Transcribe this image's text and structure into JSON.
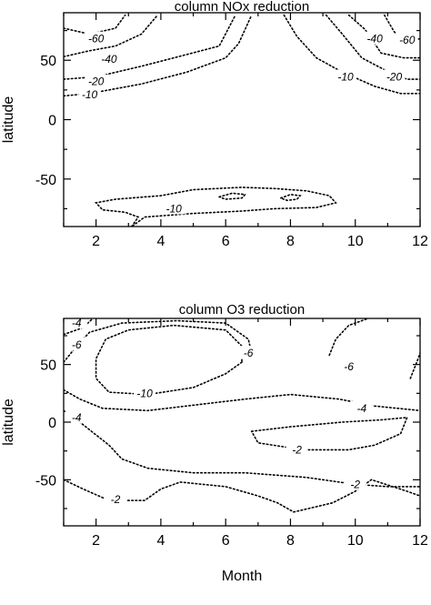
{
  "chart_data": [
    {
      "type": "contour",
      "title": "column NOx reduction",
      "xlabel": "",
      "ylabel": "latitude",
      "xlim": [
        1,
        12
      ],
      "ylim": [
        -90,
        90
      ],
      "xticks": [
        2,
        4,
        6,
        8,
        10,
        12
      ],
      "yticks": [
        50,
        0,
        -50
      ],
      "grid": false,
      "contours": [
        {
          "level": "-60",
          "side": "north-west",
          "points": [
            [
              1,
              77
            ],
            [
              1.8,
              72
            ],
            [
              2.6,
              77
            ],
            [
              2.9,
              88
            ]
          ]
        },
        {
          "level": "-40",
          "side": "north-west",
          "points": [
            [
              1,
              53
            ],
            [
              1.8,
              58
            ],
            [
              2.6,
              62
            ],
            [
              3.4,
              72
            ],
            [
              3.9,
              88
            ]
          ]
        },
        {
          "level": "-20",
          "side": "north-west",
          "points": [
            [
              1,
              34
            ],
            [
              2,
              36
            ],
            [
              3.4,
              45
            ],
            [
              4.4,
              52
            ],
            [
              5.8,
              62
            ],
            [
              6.3,
              88
            ]
          ]
        },
        {
          "level": "-10",
          "side": "north-west",
          "points": [
            [
              1,
              20
            ],
            [
              1.8,
              22
            ],
            [
              3.4,
              30
            ],
            [
              4.8,
              40
            ],
            [
              6,
              52
            ],
            [
              6.4,
              64
            ],
            [
              6.8,
              88
            ]
          ]
        },
        {
          "level": "-60",
          "side": "north-east",
          "points": [
            [
              10.9,
              88
            ],
            [
              11.2,
              74
            ],
            [
              11.5,
              67
            ],
            [
              12,
              68
            ]
          ]
        },
        {
          "level": "-40",
          "side": "north-east",
          "points": [
            [
              9.8,
              88
            ],
            [
              10.3,
              76
            ],
            [
              10.8,
              56
            ],
            [
              11.5,
              52
            ],
            [
              12,
              52
            ]
          ]
        },
        {
          "level": "-20",
          "side": "north-east",
          "points": [
            [
              9.1,
              88
            ],
            [
              9.6,
              72
            ],
            [
              10.2,
              52
            ],
            [
              10.9,
              42
            ],
            [
              11.6,
              34
            ],
            [
              12,
              34
            ]
          ]
        },
        {
          "level": "-10",
          "side": "north-east",
          "points": [
            [
              7.8,
              88
            ],
            [
              8.2,
              70
            ],
            [
              8.8,
              52
            ],
            [
              9.6,
              40
            ],
            [
              10.6,
              28
            ],
            [
              11.4,
              22
            ],
            [
              12,
              22
            ]
          ]
        },
        {
          "level": "-10",
          "side": "south",
          "points": [
            [
              3.1,
              -90
            ],
            [
              3.3,
              -82
            ],
            [
              2.9,
              -78
            ],
            [
              2.2,
              -76
            ],
            [
              2,
              -70
            ],
            [
              2.6,
              -67
            ],
            [
              4,
              -64
            ],
            [
              5,
              -59
            ],
            [
              6.5,
              -57
            ],
            [
              7.5,
              -58
            ],
            [
              8.5,
              -60
            ],
            [
              9.2,
              -64
            ],
            [
              9.4,
              -70
            ],
            [
              8.8,
              -74
            ],
            [
              7.5,
              -75
            ],
            [
              6.5,
              -77
            ],
            [
              5,
              -79
            ],
            [
              3.5,
              -82
            ],
            [
              3.3,
              -86
            ],
            [
              3.1,
              -90
            ]
          ]
        },
        {
          "level": "-10",
          "side": "south-inner-a",
          "points": [
            [
              5.8,
              -65
            ],
            [
              6.2,
              -62
            ],
            [
              6.6,
              -63
            ],
            [
              6.5,
              -66
            ],
            [
              6,
              -67
            ],
            [
              5.8,
              -65
            ]
          ]
        },
        {
          "level": "-10",
          "side": "south-inner-b",
          "points": [
            [
              7.7,
              -66
            ],
            [
              8,
              -63
            ],
            [
              8.3,
              -64
            ],
            [
              8.2,
              -67
            ],
            [
              7.9,
              -68
            ],
            [
              7.7,
              -66
            ]
          ]
        }
      ],
      "labels": [
        {
          "text": "-60",
          "x": 2.0,
          "y": 68
        },
        {
          "text": "-40",
          "x": 2.4,
          "y": 51
        },
        {
          "text": "-20",
          "x": 2.0,
          "y": 32
        },
        {
          "text": "-10",
          "x": 1.8,
          "y": 21
        },
        {
          "text": "-40",
          "x": 10.6,
          "y": 68
        },
        {
          "text": "-60",
          "x": 11.6,
          "y": 67
        },
        {
          "text": "-10",
          "x": 9.7,
          "y": 36
        },
        {
          "text": "-20",
          "x": 11.2,
          "y": 36
        },
        {
          "text": "-10",
          "x": 4.4,
          "y": -75
        }
      ]
    },
    {
      "type": "contour",
      "title": "column O3  reduction",
      "xlabel": "Month",
      "ylabel": "latitude",
      "xlim": [
        1,
        12
      ],
      "ylim": [
        -90,
        90
      ],
      "xticks": [
        2,
        4,
        6,
        8,
        10,
        12
      ],
      "yticks": [
        50,
        0,
        -50
      ],
      "grid": false,
      "contours": [
        {
          "level": "-4",
          "side": "upper-left",
          "points": [
            [
              1,
              76
            ],
            [
              1.6,
              82
            ],
            [
              1.9,
              90
            ]
          ]
        },
        {
          "level": "-6",
          "side": "upper-left",
          "points": [
            [
              1,
              52
            ],
            [
              1.4,
              66
            ],
            [
              1.8,
              78
            ],
            [
              2.8,
              86
            ],
            [
              4.5,
              88
            ],
            [
              6,
              86
            ],
            [
              6.7,
              72
            ],
            [
              6.8,
              60
            ]
          ]
        },
        {
          "level": "-10",
          "side": "upper-left",
          "points": [
            [
              6.5,
              52
            ],
            [
              6,
              42
            ],
            [
              5,
              30
            ],
            [
              3.6,
              24
            ],
            [
              2.4,
              26
            ],
            [
              2,
              38
            ],
            [
              2,
              55
            ],
            [
              2.3,
              72
            ],
            [
              3,
              80
            ],
            [
              4.4,
              84
            ],
            [
              6,
              80
            ],
            [
              6.5,
              66
            ],
            [
              6.5,
              52
            ]
          ]
        },
        {
          "level": "-4",
          "side": "upper-left",
          "points": [
            [
              1,
              28
            ],
            [
              1.5,
              20
            ],
            [
              2.2,
              12
            ],
            [
              3.6,
              10
            ],
            [
              5.4,
              16
            ],
            [
              6.6,
              20
            ],
            [
              8,
              24
            ],
            [
              9.5,
              20
            ],
            [
              10.6,
              14
            ],
            [
              12,
              10
            ]
          ]
        },
        {
          "level": "-6",
          "side": "upper-right",
          "points": [
            [
              9.2,
              58
            ],
            [
              9.4,
              72
            ],
            [
              9.8,
              84
            ],
            [
              10.4,
              90
            ]
          ]
        },
        {
          "level": "-6",
          "side": "upper-right-b",
          "points": [
            [
              11.7,
              38
            ],
            [
              11.9,
              52
            ],
            [
              12,
              60
            ]
          ]
        },
        {
          "level": "-2",
          "side": "middle",
          "points": [
            [
              1,
              10
            ],
            [
              1.5,
              0
            ],
            [
              2.4,
              -20
            ],
            [
              2.8,
              -32
            ],
            [
              3.6,
              -40
            ],
            [
              5,
              -44
            ],
            [
              6.6,
              -44
            ],
            [
              8.5,
              -48
            ],
            [
              10,
              -54
            ],
            [
              11,
              -56
            ],
            [
              12,
              -56
            ]
          ]
        },
        {
          "level": "-2",
          "side": "middle-closed",
          "points": [
            [
              6.8,
              -8
            ],
            [
              8,
              -4
            ],
            [
              9.6,
              0
            ],
            [
              10.8,
              2
            ],
            [
              11.6,
              4
            ],
            [
              11.4,
              -10
            ],
            [
              10.6,
              -20
            ],
            [
              9.8,
              -24
            ],
            [
              8.4,
              -24
            ],
            [
              7,
              -18
            ],
            [
              6.8,
              -8
            ]
          ]
        },
        {
          "level": "-2",
          "side": "bottom",
          "points": [
            [
              1,
              -50
            ],
            [
              1.6,
              -58
            ],
            [
              2.4,
              -68
            ],
            [
              3.5,
              -68
            ],
            [
              4,
              -58
            ],
            [
              4.6,
              -52
            ],
            [
              6,
              -56
            ],
            [
              7,
              -64
            ],
            [
              7.6,
              -70
            ],
            [
              8.1,
              -78
            ],
            [
              9.3,
              -70
            ],
            [
              10,
              -60
            ],
            [
              10.5,
              -50
            ],
            [
              11.6,
              -60
            ],
            [
              12,
              -64
            ]
          ]
        }
      ],
      "labels": [
        {
          "text": "-4",
          "x": 1.4,
          "y": 86
        },
        {
          "text": "-6",
          "x": 1.4,
          "y": 67
        },
        {
          "text": "-6",
          "x": 6.7,
          "y": 60
        },
        {
          "text": "-10",
          "x": 3.5,
          "y": 25
        },
        {
          "text": "-6",
          "x": 9.8,
          "y": 48
        },
        {
          "text": "-4",
          "x": 1.4,
          "y": 4
        },
        {
          "text": "-4",
          "x": 10.2,
          "y": 12
        },
        {
          "text": "-2",
          "x": 8.2,
          "y": -24
        },
        {
          "text": "-2",
          "x": 2.6,
          "y": -67
        },
        {
          "text": "-2",
          "x": 10.0,
          "y": -54
        }
      ]
    }
  ]
}
